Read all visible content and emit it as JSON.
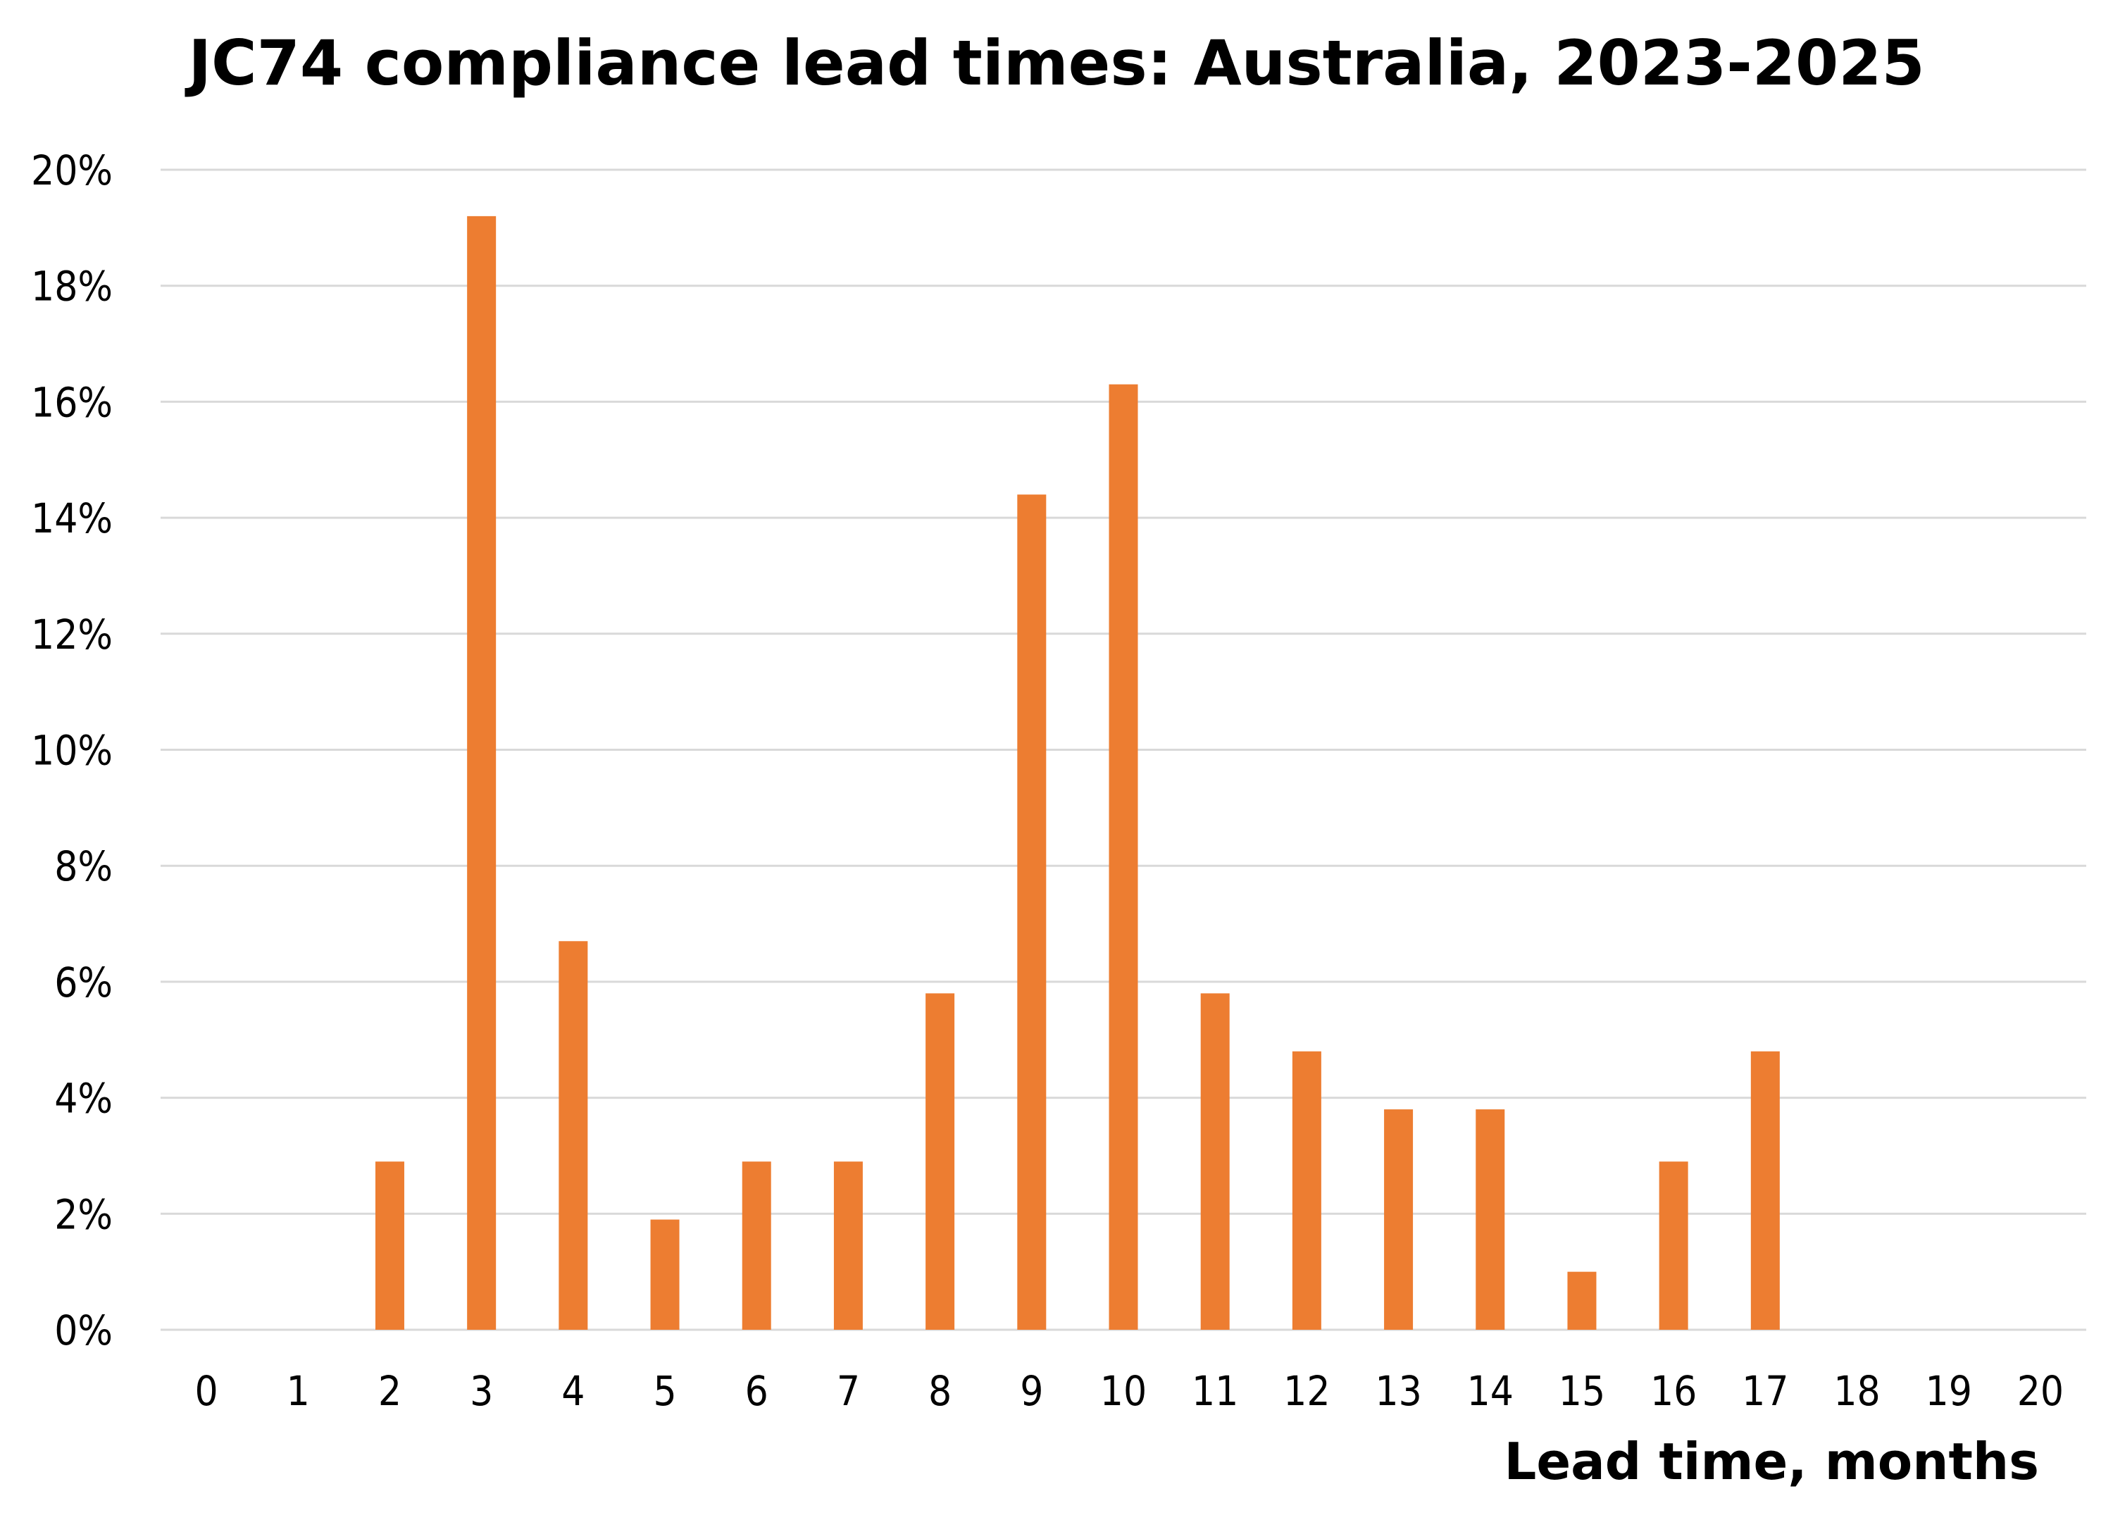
{
  "chart_data": {
    "type": "bar",
    "title": "JC74 compliance lead times: Australia, 2023-2025",
    "xlabel": "Lead time, months",
    "ylabel": "",
    "categories": [
      "0",
      "1",
      "2",
      "3",
      "4",
      "5",
      "6",
      "7",
      "8",
      "9",
      "10",
      "11",
      "12",
      "13",
      "14",
      "15",
      "16",
      "17",
      "18",
      "19",
      "20"
    ],
    "values": [
      0,
      0,
      2.9,
      19.2,
      6.7,
      1.9,
      2.9,
      2.9,
      5.8,
      14.4,
      16.3,
      5.8,
      4.8,
      3.8,
      3.8,
      1.0,
      2.9,
      4.8,
      0,
      0,
      0
    ],
    "value_format": "percent",
    "ylim": [
      0,
      20
    ],
    "yticks": [
      0,
      2,
      4,
      6,
      8,
      10,
      12,
      14,
      16,
      18,
      20
    ],
    "ytick_labels": [
      "0%",
      "2%",
      "4%",
      "6%",
      "8%",
      "10%",
      "12%",
      "14%",
      "16%",
      "18%",
      "20%"
    ],
    "grid": true,
    "legend": "none",
    "colors": {
      "bar": "#ed7d31",
      "grid": "#d9d9d9",
      "text": "#000000"
    }
  }
}
